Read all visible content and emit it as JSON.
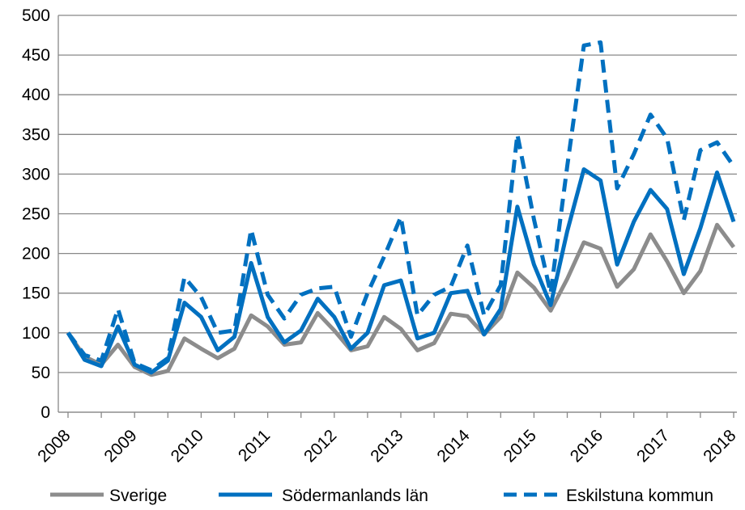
{
  "chart_data": {
    "type": "line",
    "title": "",
    "xlabel": "",
    "ylabel": "",
    "ylim": [
      0,
      500
    ],
    "yticks": [
      0,
      50,
      100,
      150,
      200,
      250,
      300,
      350,
      400,
      450,
      500
    ],
    "grid": "horizontal",
    "legend_position": "bottom",
    "year_labels": [
      "2008",
      "2009",
      "2010",
      "2011",
      "2012",
      "2013",
      "2014",
      "2015",
      "2016",
      "2017",
      "2018"
    ],
    "quarters_per_year": 4,
    "series": [
      {
        "name": "Sverige",
        "color": "#8c8c8c",
        "dash": "solid",
        "values": [
          100,
          70,
          60,
          85,
          57,
          47,
          52,
          93,
          80,
          68,
          80,
          122,
          108,
          85,
          88,
          125,
          103,
          78,
          83,
          120,
          105,
          78,
          87,
          124,
          121,
          98,
          120,
          176,
          157,
          128,
          168,
          214,
          206,
          158,
          180,
          224,
          190,
          150,
          178,
          236,
          208
        ]
      },
      {
        "name": "Södermanlands län",
        "color": "#0070c0",
        "dash": "solid",
        "values": [
          100,
          66,
          58,
          108,
          60,
          50,
          65,
          138,
          120,
          78,
          95,
          188,
          120,
          88,
          103,
          143,
          120,
          80,
          100,
          160,
          166,
          93,
          100,
          150,
          153,
          98,
          130,
          259,
          186,
          135,
          228,
          306,
          292,
          186,
          240,
          280,
          256,
          174,
          232,
          302,
          240
        ]
      },
      {
        "name": "Eskilstuna kommun",
        "color": "#0070c0",
        "dash": "dashed",
        "values": [
          100,
          72,
          65,
          130,
          62,
          53,
          68,
          170,
          145,
          100,
          103,
          230,
          148,
          118,
          148,
          156,
          158,
          95,
          150,
          196,
          246,
          122,
          148,
          158,
          210,
          122,
          160,
          350,
          243,
          150,
          310,
          462,
          466,
          282,
          325,
          375,
          345,
          242,
          330,
          340,
          310
        ]
      }
    ]
  }
}
